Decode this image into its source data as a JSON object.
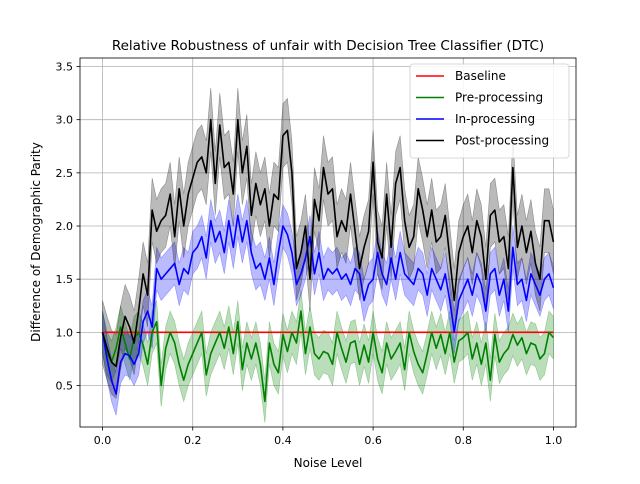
{
  "chart_data": {
    "type": "line",
    "title": "Relative Robustness of unfair with Decision Tree Classifier (DTC)",
    "xlabel": "Noise Level",
    "ylabel": "Difference of Demographic Parity",
    "xlim": [
      -0.05,
      1.05
    ],
    "ylim": [
      0.11,
      3.58
    ],
    "xticks": [
      0.0,
      0.2,
      0.4,
      0.6,
      0.8,
      1.0
    ],
    "xtick_labels": [
      "0.0",
      "0.2",
      "0.4",
      "0.6",
      "0.8",
      "1.0"
    ],
    "yticks": [
      0.5,
      1.0,
      1.5,
      2.0,
      2.5,
      3.0,
      3.5
    ],
    "ytick_labels": [
      "0.5",
      "1.0",
      "1.5",
      "2.0",
      "2.5",
      "3.0",
      "3.5"
    ],
    "grid": true,
    "legend_position": "top-right",
    "x": [
      0.0,
      0.01,
      0.02,
      0.03,
      0.04,
      0.05,
      0.06,
      0.07,
      0.08,
      0.09,
      0.1,
      0.11,
      0.12,
      0.13,
      0.14,
      0.15,
      0.16,
      0.17,
      0.18,
      0.19,
      0.2,
      0.21,
      0.22,
      0.23,
      0.24,
      0.25,
      0.26,
      0.27,
      0.28,
      0.29,
      0.3,
      0.31,
      0.32,
      0.33,
      0.34,
      0.35,
      0.36,
      0.37,
      0.38,
      0.39,
      0.4,
      0.41,
      0.42,
      0.43,
      0.44,
      0.45,
      0.46,
      0.47,
      0.48,
      0.49,
      0.5,
      0.51,
      0.52,
      0.53,
      0.54,
      0.55,
      0.56,
      0.57,
      0.58,
      0.59,
      0.6,
      0.61,
      0.62,
      0.63,
      0.64,
      0.65,
      0.66,
      0.67,
      0.68,
      0.69,
      0.7,
      0.71,
      0.72,
      0.73,
      0.74,
      0.75,
      0.76,
      0.77,
      0.78,
      0.79,
      0.8,
      0.81,
      0.82,
      0.83,
      0.84,
      0.85,
      0.86,
      0.87,
      0.88,
      0.89,
      0.9,
      0.91,
      0.92,
      0.93,
      0.94,
      0.95,
      0.96,
      0.97,
      0.98,
      0.99,
      1.0
    ],
    "series": [
      {
        "name": "Baseline",
        "color": "#ff0000",
        "values": [
          1.0,
          1.0,
          1.0,
          1.0,
          1.0,
          1.0,
          1.0,
          1.0,
          1.0,
          1.0,
          1.0,
          1.0,
          1.0,
          1.0,
          1.0,
          1.0,
          1.0,
          1.0,
          1.0,
          1.0,
          1.0,
          1.0,
          1.0,
          1.0,
          1.0,
          1.0,
          1.0,
          1.0,
          1.0,
          1.0,
          1.0,
          1.0,
          1.0,
          1.0,
          1.0,
          1.0,
          1.0,
          1.0,
          1.0,
          1.0,
          1.0,
          1.0,
          1.0,
          1.0,
          1.0,
          1.0,
          1.0,
          1.0,
          1.0,
          1.0,
          1.0,
          1.0,
          1.0,
          1.0,
          1.0,
          1.0,
          1.0,
          1.0,
          1.0,
          1.0,
          1.0,
          1.0,
          1.0,
          1.0,
          1.0,
          1.0,
          1.0,
          1.0,
          1.0,
          1.0,
          1.0,
          1.0,
          1.0,
          1.0,
          1.0,
          1.0,
          1.0,
          1.0,
          1.0,
          1.0,
          1.0,
          1.0,
          1.0,
          1.0,
          1.0,
          1.0,
          1.0,
          1.0,
          1.0,
          1.0,
          1.0,
          1.0,
          1.0,
          1.0,
          1.0,
          1.0,
          1.0,
          1.0,
          1.0,
          1.0,
          1.0
        ],
        "band": 0.0
      },
      {
        "name": "Pre-processing",
        "color": "#008000",
        "values": [
          1.0,
          0.8,
          0.72,
          0.85,
          1.05,
          0.9,
          0.75,
          0.95,
          1.0,
          0.88,
          0.7,
          1.0,
          1.1,
          0.5,
          0.85,
          1.0,
          0.9,
          0.7,
          0.55,
          0.7,
          0.8,
          0.9,
          1.0,
          0.6,
          0.8,
          0.9,
          1.0,
          0.85,
          1.05,
          0.8,
          1.1,
          0.65,
          0.9,
          0.75,
          0.9,
          0.7,
          0.35,
          0.9,
          0.7,
          0.62,
          0.98,
          0.82,
          1.0,
          0.9,
          1.2,
          0.8,
          1.05,
          0.8,
          0.75,
          0.82,
          0.8,
          0.7,
          1.0,
          0.85,
          0.72,
          0.9,
          0.92,
          0.7,
          0.88,
          0.72,
          1.0,
          0.75,
          0.62,
          0.9,
          0.75,
          0.82,
          0.9,
          0.65,
          1.0,
          0.82,
          0.7,
          0.62,
          0.8,
          1.0,
          0.85,
          0.98,
          0.8,
          1.0,
          0.72,
          0.92,
          0.95,
          1.0,
          0.75,
          0.9,
          0.7,
          0.9,
          0.55,
          0.98,
          0.72,
          0.8,
          0.85,
          0.98,
          0.88,
          0.95,
          0.8,
          0.9,
          0.88,
          0.75,
          0.8,
          1.0,
          0.95
        ],
        "band": 0.2
      },
      {
        "name": "In-processing",
        "color": "#0000ff",
        "values": [
          1.0,
          0.75,
          0.55,
          0.42,
          0.72,
          0.8,
          0.78,
          0.7,
          0.8,
          1.1,
          1.2,
          1.05,
          1.6,
          1.5,
          1.55,
          1.6,
          1.65,
          1.45,
          1.6,
          1.55,
          1.75,
          1.8,
          1.9,
          1.7,
          2.05,
          1.85,
          1.95,
          1.75,
          2.05,
          1.8,
          2.1,
          1.85,
          2.05,
          1.75,
          1.6,
          1.65,
          1.5,
          1.7,
          1.45,
          1.75,
          2.0,
          1.92,
          1.75,
          1.45,
          1.55,
          1.7,
          1.9,
          1.55,
          1.75,
          1.5,
          1.6,
          1.55,
          1.6,
          1.5,
          1.55,
          1.45,
          1.6,
          1.55,
          1.3,
          1.45,
          1.5,
          1.75,
          1.55,
          1.45,
          1.7,
          1.5,
          1.75,
          1.55,
          1.5,
          1.45,
          1.6,
          1.55,
          1.35,
          1.6,
          1.5,
          1.4,
          1.55,
          1.3,
          1.0,
          1.3,
          1.4,
          1.5,
          1.35,
          1.55,
          1.45,
          1.2,
          1.55,
          1.6,
          1.35,
          1.5,
          1.2,
          1.8,
          1.45,
          1.5,
          1.3,
          1.55,
          1.45,
          1.35,
          1.5,
          1.55,
          1.42
        ],
        "band": 0.2
      },
      {
        "name": "Post-processing",
        "color": "#000000",
        "values": [
          1.0,
          0.85,
          0.72,
          0.68,
          0.95,
          1.15,
          1.05,
          0.9,
          1.2,
          1.55,
          1.35,
          2.15,
          1.95,
          2.05,
          2.1,
          2.3,
          1.9,
          2.35,
          2.0,
          2.3,
          2.45,
          2.6,
          2.65,
          2.5,
          3.0,
          2.4,
          2.95,
          2.55,
          2.6,
          2.3,
          3.0,
          2.5,
          2.75,
          2.1,
          2.4,
          2.2,
          2.35,
          2.0,
          2.3,
          2.25,
          2.85,
          2.9,
          2.5,
          1.6,
          1.75,
          2.0,
          1.5,
          2.25,
          2.05,
          2.55,
          2.3,
          2.35,
          1.9,
          2.05,
          1.95,
          2.3,
          1.95,
          1.6,
          1.8,
          1.95,
          2.6,
          1.85,
          1.7,
          2.3,
          1.8,
          2.4,
          2.55,
          2.05,
          1.8,
          1.9,
          2.35,
          2.15,
          1.9,
          2.15,
          1.85,
          1.9,
          2.1,
          1.7,
          1.3,
          1.75,
          1.9,
          2.0,
          1.75,
          2.05,
          1.9,
          1.5,
          2.1,
          2.15,
          1.85,
          1.9,
          1.6,
          2.55,
          1.8,
          2.0,
          1.75,
          1.95,
          1.65,
          1.5,
          2.05,
          2.05,
          1.85
        ],
        "band": 0.3
      }
    ]
  }
}
